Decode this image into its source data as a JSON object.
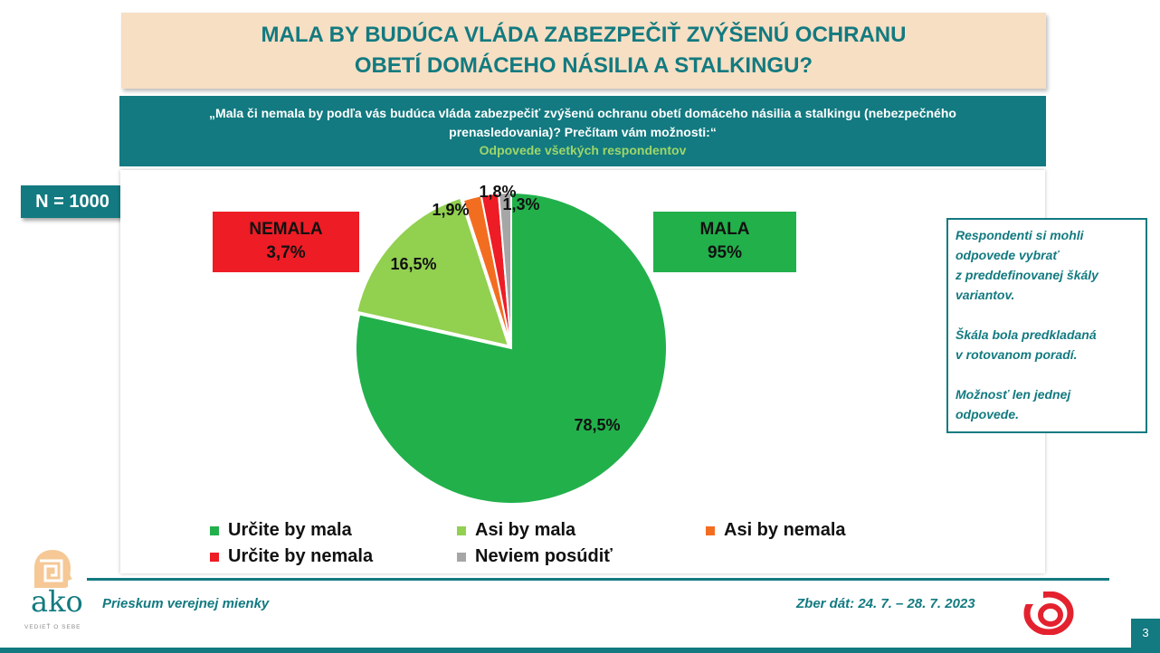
{
  "title": "MALA BY BUDÚCA VLÁDA ZABEZPEČIŤ ZVÝŠENÚ OCHRANU OBETÍ DOMÁCEHO NÁSILIA A STALKINGU?",
  "question": "„Mala či nemala by podľa vás budúca vláda zabezpečiť zvýšenú ochranu obetí domáceho násilia a stalkingu (nebezpečného prenasledovania)? Prečítam vám možnosti:“",
  "subquestion": "Odpovede všetkých respondentov",
  "sample_size": "N = 1000",
  "summary": {
    "nemala_label": "NEMALA",
    "nemala_value": "3,7%",
    "mala_label": "MALA",
    "mala_value": "95%"
  },
  "note": {
    "p1": "Respondenti si mohli\nodpovede vybrať\nz preddefinovanej škály\nvariantov.",
    "p2": "Škála bola predkladaná\nv rotovanom poradí.",
    "p3": "Možnosť len jednej\nodpovede."
  },
  "footer": {
    "left": "Prieskum verejnej mienky",
    "right": "Zber dát: 24. 7. – 28. 7. 2023",
    "page": "3"
  },
  "logo": {
    "text": "ako",
    "tagline": "VEDIEŤ O SEBE"
  },
  "colors": {
    "teal": "#127a80",
    "green_dark": "#22b04b",
    "green_light": "#92d050",
    "orange": "#f36d21",
    "red": "#ee1c25",
    "gray": "#a6a6a6"
  },
  "chart_data": {
    "type": "pie",
    "series": [
      {
        "name": "Určite by mala",
        "value": 78.5,
        "label": "78,5%",
        "color": "#22b04b"
      },
      {
        "name": "Asi by mala",
        "value": 16.5,
        "label": "16,5%",
        "color": "#92d050"
      },
      {
        "name": "Asi by nemala",
        "value": 1.9,
        "label": "1,9%",
        "color": "#f36d21"
      },
      {
        "name": "Určite by nemala",
        "value": 1.8,
        "label": "1,8%",
        "color": "#ee1c25"
      },
      {
        "name": "Neviem posúdiť",
        "value": 1.3,
        "label": "1,3%",
        "color": "#a6a6a6"
      }
    ],
    "legend_position": "bottom"
  }
}
